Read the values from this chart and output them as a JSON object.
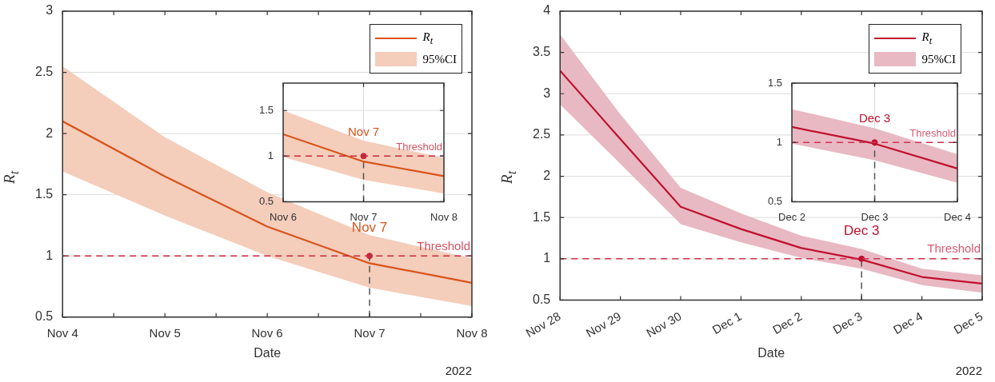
{
  "chart_data": [
    {
      "type": "line",
      "x": [
        "2022-11-04",
        "2022-11-05",
        "2022-11-06",
        "2022-11-07",
        "2022-11-08"
      ],
      "xlabel": "Date",
      "ylabel": "R$_{t}$",
      "xlim": [
        "2022-11-04",
        "2022-11-08"
      ],
      "xticks": [
        {
          "value": "2022-11-04",
          "label": "Nov 4"
        },
        {
          "value": "2022-11-04T12:00",
          "label": null
        },
        {
          "value": "2022-11-05",
          "label": "Nov 5"
        },
        {
          "value": "2022-11-05T12:00",
          "label": null
        },
        {
          "value": "2022-11-06",
          "label": "Nov 6"
        },
        {
          "value": "2022-11-06T12:00",
          "label": null
        },
        {
          "value": "2022-11-07",
          "label": "Nov 7"
        },
        {
          "value": "2022-11-07T12:00",
          "label": null
        },
        {
          "value": "2022-11-08",
          "label": "Nov 8"
        }
      ],
      "ylim": [
        0.5,
        3
      ],
      "yticks": [
        0.5,
        1,
        1.5,
        2,
        2.5,
        3
      ],
      "grid": "y",
      "legend": "top right",
      "series": [
        {
          "name": "R$_{t}$",
          "type": "line",
          "color": "#d95319",
          "values": [
            2.1,
            1.65,
            1.24,
            0.94,
            0.78
          ]
        },
        {
          "name": "95%CI",
          "type": "area",
          "color": "#f4cdbb",
          "values": [
            null,
            null,
            null,
            null,
            null
          ],
          "lower": [
            1.69,
            1.33,
            1.0,
            0.74,
            0.59
          ],
          "upper": [
            2.55,
            1.97,
            1.52,
            1.17,
            0.98
          ]
        },
        {
          "type": "scatter",
          "color": "#c8283c",
          "marker": "circle",
          "x": [
            "2022-11-07"
          ],
          "values": [
            1
          ]
        },
        {
          "color": "#555555",
          "line_style": "dashed",
          "x": [
            "2022-11-07",
            "2022-11-07"
          ],
          "values": [
            0.5,
            1
          ]
        }
      ],
      "ref_lines": [
        {
          "axis": "y",
          "value": 1,
          "label": "Threshold",
          "color": "#c8283c",
          "line_style": "dashed"
        }
      ],
      "annotations": [
        {
          "text": "Nov 7",
          "x": "2022-11-07",
          "y": 1
        },
        "2022"
      ]
    },
    {
      "type": "line",
      "x": [
        "2022-11-06",
        "2022-11-07",
        "2022-11-08"
      ],
      "xlim": [
        "2022-11-06",
        "2022-11-08"
      ],
      "xticks": [
        {
          "value": "2022-11-06",
          "label": "Nov 6"
        },
        {
          "value": "2022-11-07",
          "label": "Nov 7"
        },
        {
          "value": "2022-11-08",
          "label": "Nov 8"
        }
      ],
      "ylim": [
        0.5,
        1.8
      ],
      "yticks": [
        0.5,
        1,
        1.5
      ],
      "grid": true,
      "series": [
        {
          "type": "line",
          "color": "#d95319",
          "values": [
            1.24,
            0.94,
            0.78
          ]
        },
        {
          "type": "area",
          "color": "#f4cdbb",
          "values": [
            null,
            null,
            null
          ],
          "lower": [
            0.99,
            0.74,
            0.59
          ],
          "upper": [
            1.5,
            1.17,
            0.98
          ]
        },
        {
          "type": "scatter",
          "color": "#c8283c",
          "marker": "circle",
          "x": [
            "2022-11-07"
          ],
          "values": [
            1
          ]
        },
        {
          "color": "#555555",
          "line_style": "dashed",
          "x": [
            "2022-11-07",
            "2022-11-07"
          ],
          "values": [
            0.5,
            1
          ]
        }
      ],
      "ref_lines": [
        {
          "axis": "y",
          "value": 1,
          "label": "Threshold",
          "color": "#c8283c",
          "line_style": "dashed"
        }
      ],
      "annotations": [
        {
          "text": "Nov 7",
          "x": "2022-11-07",
          "y": 1
        }
      ]
    },
    {
      "type": "line",
      "x": [
        "2022-11-28",
        "2022-11-29",
        "2022-11-30",
        "2022-12-01",
        "2022-12-02",
        "2022-12-03",
        "2022-12-04",
        "2022-12-05"
      ],
      "xlabel": "Date",
      "ylabel": "R$_{t}$",
      "xlim": [
        "2022-11-28",
        "2022-12-05"
      ],
      "xticks": [
        {
          "value": "2022-11-28",
          "label": "Nov 28"
        },
        {
          "value": "2022-11-29",
          "label": "Nov 29"
        },
        {
          "value": "2022-11-30",
          "label": "Nov 30"
        },
        {
          "value": "2022-12-01",
          "label": "Dec 1"
        },
        {
          "value": "2022-12-02",
          "label": "Dec 2"
        },
        {
          "value": "2022-12-03",
          "label": "Dec 3"
        },
        {
          "value": "2022-12-04",
          "label": "Dec 4"
        },
        {
          "value": "2022-12-05",
          "label": "Dec 5"
        }
      ],
      "ylim": [
        0.5,
        4
      ],
      "yticks": [
        0.5,
        1,
        1.5,
        2,
        2.5,
        3,
        3.5,
        4
      ],
      "grid": "y",
      "legend": "top right",
      "series": [
        {
          "name": "R$_{t}$",
          "type": "line",
          "color": "#c0102e",
          "values": [
            3.28,
            2.45,
            1.63,
            1.36,
            1.13,
            0.99,
            0.78,
            0.7
          ]
        },
        {
          "name": "95%CI",
          "type": "area",
          "color": "#e8b9c3",
          "values": [
            null,
            null,
            null,
            null,
            null,
            null,
            null,
            null
          ],
          "lower": [
            2.87,
            2.15,
            1.42,
            1.2,
            1.01,
            0.88,
            0.68,
            0.59
          ],
          "upper": [
            3.72,
            2.75,
            1.86,
            1.55,
            1.28,
            1.12,
            0.88,
            0.8
          ]
        },
        {
          "type": "scatter",
          "color": "#c0102e",
          "marker": "circle",
          "x": [
            "2022-12-03"
          ],
          "values": [
            1
          ]
        },
        {
          "color": "#555555",
          "line_style": "dashed",
          "x": [
            "2022-12-03",
            "2022-12-03"
          ],
          "values": [
            0.5,
            1
          ]
        }
      ],
      "ref_lines": [
        {
          "axis": "y",
          "value": 1,
          "label": "Threshold",
          "color": "#d03050",
          "line_style": "dashed"
        }
      ],
      "annotations": [
        {
          "text": "Dec 3",
          "x": "2022-12-03",
          "y": 1
        },
        "2022"
      ]
    },
    {
      "type": "line",
      "x": [
        "2022-12-02",
        "2022-12-03",
        "2022-12-04"
      ],
      "xlim": [
        "2022-12-02",
        "2022-12-04"
      ],
      "xticks": [
        {
          "value": "2022-12-02",
          "label": "Dec 2"
        },
        {
          "value": "2022-12-03",
          "label": "Dec 3"
        },
        {
          "value": "2022-12-04",
          "label": "Dec 4"
        }
      ],
      "ylim": [
        0.5,
        1.5
      ],
      "yticks": [
        0.5,
        1,
        1.5
      ],
      "grid": true,
      "series": [
        {
          "type": "line",
          "color": "#c0102e",
          "values": [
            1.13,
            0.99,
            0.78
          ]
        },
        {
          "type": "area",
          "color": "#e8b9c3",
          "values": [
            null,
            null,
            null
          ],
          "lower": [
            0.99,
            0.85,
            0.66
          ],
          "upper": [
            1.28,
            1.12,
            0.9
          ]
        },
        {
          "type": "scatter",
          "color": "#c0102e",
          "marker": "circle",
          "x": [
            "2022-12-03"
          ],
          "values": [
            1
          ]
        },
        {
          "color": "#555555",
          "line_style": "dashed",
          "x": [
            "2022-12-03",
            "2022-12-03"
          ],
          "values": [
            0.5,
            1
          ]
        }
      ],
      "ref_lines": [
        {
          "axis": "y",
          "value": 1,
          "label": "Threshold",
          "color": "#d03050",
          "line_style": "dashed"
        }
      ],
      "annotations": [
        {
          "text": "Dec 3",
          "x": "2022-12-03",
          "y": 1
        }
      ]
    }
  ]
}
